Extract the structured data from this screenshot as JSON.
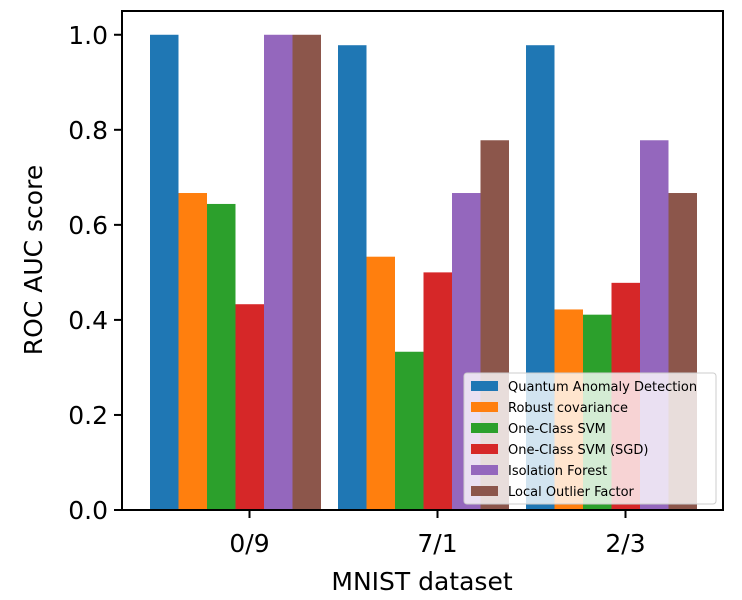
{
  "chart_data": {
    "type": "bar",
    "title": "",
    "xlabel": "MNIST dataset",
    "ylabel": "ROC AUC score",
    "categories": [
      "0/9",
      "7/1",
      "2/3"
    ],
    "ylim": [
      0,
      1.05
    ],
    "yticks": [
      "0.0",
      "0.2",
      "0.4",
      "0.6",
      "0.8",
      "1.0"
    ],
    "ytick_values": [
      0,
      0.2,
      0.4,
      0.6,
      0.8,
      1.0
    ],
    "legend_position": "lower-right",
    "series": [
      {
        "name": "Quantum Anomaly Detection",
        "color": "#1f77b4",
        "values": [
          1.0,
          0.978,
          0.978
        ]
      },
      {
        "name": "Robust covariance",
        "color": "#ff7f0e",
        "values": [
          0.667,
          0.533,
          0.422
        ]
      },
      {
        "name": "One-Class SVM",
        "color": "#2ca02c",
        "values": [
          0.644,
          0.333,
          0.411
        ]
      },
      {
        "name": "One-Class SVM (SGD)",
        "color": "#d62728",
        "values": [
          0.433,
          0.5,
          0.478
        ]
      },
      {
        "name": "Isolation Forest",
        "color": "#9467bd",
        "values": [
          1.0,
          0.667,
          0.778
        ]
      },
      {
        "name": "Local Outlier Factor",
        "color": "#8c564b",
        "values": [
          1.0,
          0.778,
          0.667
        ]
      }
    ]
  }
}
